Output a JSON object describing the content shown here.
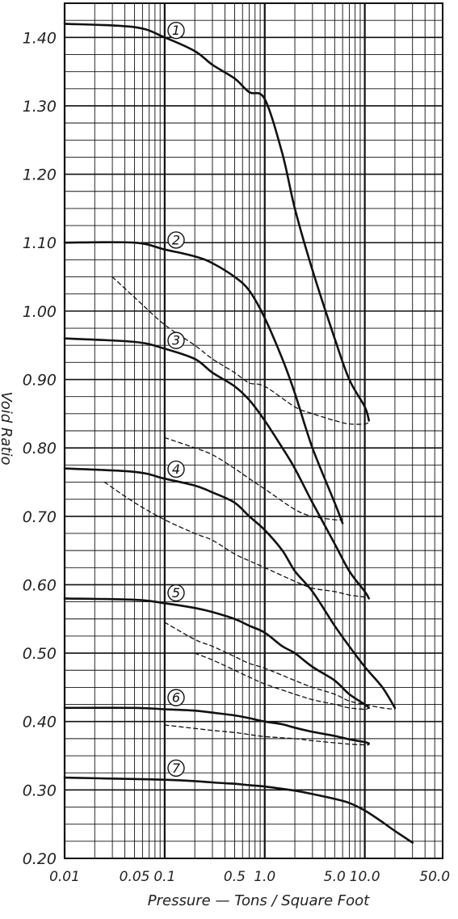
{
  "chart_data": {
    "type": "line",
    "xlabel": "Pressure — Tons / Square Foot",
    "ylabel": "Void Ratio",
    "x_scale": "log",
    "xlim": [
      0.01,
      60
    ],
    "ylim": [
      0.2,
      1.45
    ],
    "grid": true,
    "x_tick_labels": [
      "0.01",
      "0.05",
      "0.1",
      "0.5",
      "1.0",
      "5.0",
      "10.0",
      "50.0"
    ],
    "y_tick_labels": [
      "0.20",
      "0.30",
      "0.40",
      "0.50",
      "0.60",
      "0.70",
      "0.80",
      "0.90",
      "1.00",
      "1.10",
      "1.20",
      "1.30",
      "1.40"
    ],
    "series": [
      {
        "name": "1",
        "style": "solid",
        "x": [
          0.01,
          0.05,
          0.1,
          0.2,
          0.3,
          0.5,
          0.7,
          1.0,
          1.5,
          2.0,
          3.0,
          5.0,
          7.0,
          10.0,
          11.0
        ],
        "y": [
          1.42,
          1.415,
          1.4,
          1.38,
          1.36,
          1.34,
          1.32,
          1.31,
          1.23,
          1.15,
          1.06,
          0.96,
          0.9,
          0.86,
          0.84
        ]
      },
      {
        "name": "2",
        "style": "solid",
        "x": [
          0.01,
          0.05,
          0.1,
          0.2,
          0.3,
          0.5,
          0.7,
          1.0,
          1.5,
          2.0,
          3.0,
          5.0,
          6.0
        ],
        "y": [
          1.1,
          1.1,
          1.09,
          1.08,
          1.07,
          1.05,
          1.03,
          0.99,
          0.93,
          0.88,
          0.8,
          0.72,
          0.69
        ]
      },
      {
        "name": "3",
        "style": "solid",
        "x": [
          0.01,
          0.05,
          0.1,
          0.2,
          0.3,
          0.5,
          0.7,
          1.0,
          1.5,
          2.0,
          3.0,
          5.0,
          7.0,
          10.0,
          11.0
        ],
        "y": [
          0.96,
          0.955,
          0.945,
          0.93,
          0.91,
          0.89,
          0.87,
          0.84,
          0.8,
          0.77,
          0.72,
          0.66,
          0.62,
          0.59,
          0.58
        ]
      },
      {
        "name": "4",
        "style": "solid",
        "x": [
          0.01,
          0.05,
          0.1,
          0.2,
          0.3,
          0.5,
          0.7,
          1.0,
          1.5,
          2.0,
          3.0,
          5.0,
          7.0,
          10.0,
          15.0,
          20.0
        ],
        "y": [
          0.77,
          0.765,
          0.755,
          0.745,
          0.735,
          0.72,
          0.7,
          0.68,
          0.65,
          0.62,
          0.59,
          0.54,
          0.51,
          0.48,
          0.45,
          0.42
        ]
      },
      {
        "name": "5",
        "style": "solid",
        "x": [
          0.01,
          0.05,
          0.1,
          0.2,
          0.3,
          0.5,
          0.7,
          1.0,
          1.5,
          2.0,
          3.0,
          5.0,
          7.0,
          10.0,
          11.0
        ],
        "y": [
          0.58,
          0.578,
          0.573,
          0.566,
          0.56,
          0.55,
          0.54,
          0.53,
          0.51,
          0.5,
          0.48,
          0.46,
          0.44,
          0.425,
          0.42
        ]
      },
      {
        "name": "6",
        "style": "solid",
        "x": [
          0.01,
          0.05,
          0.1,
          0.2,
          0.3,
          0.5,
          0.7,
          1.0,
          1.5,
          2.0,
          3.0,
          5.0,
          7.0,
          10.0,
          11.0
        ],
        "y": [
          0.42,
          0.42,
          0.418,
          0.416,
          0.413,
          0.409,
          0.405,
          0.4,
          0.396,
          0.391,
          0.385,
          0.379,
          0.374,
          0.37,
          0.368
        ]
      },
      {
        "name": "7",
        "style": "solid",
        "x": [
          0.01,
          0.05,
          0.1,
          0.2,
          0.3,
          0.5,
          0.7,
          1.0,
          2.0,
          3.0,
          5.0,
          7.0,
          10.0,
          15.0,
          20.0,
          30.0
        ],
        "y": [
          0.318,
          0.316,
          0.315,
          0.313,
          0.311,
          0.309,
          0.307,
          0.305,
          0.299,
          0.294,
          0.287,
          0.281,
          0.27,
          0.253,
          0.24,
          0.223
        ]
      },
      {
        "name": "",
        "style": "dashed",
        "x": [
          0.03,
          0.05,
          0.1,
          0.2,
          0.3,
          0.5,
          0.7,
          1.0,
          2.0,
          3.0,
          5.0,
          7.0,
          10.0,
          11.0
        ],
        "y": [
          1.05,
          1.02,
          0.98,
          0.95,
          0.93,
          0.91,
          0.895,
          0.89,
          0.86,
          0.85,
          0.84,
          0.835,
          0.835,
          0.838
        ]
      },
      {
        "name": "",
        "style": "dashed",
        "x": [
          0.1,
          0.2,
          0.3,
          0.5,
          0.7,
          1.0,
          2.0,
          3.0,
          5.0,
          6.0
        ],
        "y": [
          0.815,
          0.8,
          0.79,
          0.77,
          0.755,
          0.74,
          0.71,
          0.7,
          0.695,
          0.695
        ]
      },
      {
        "name": "",
        "style": "dashed",
        "x": [
          0.025,
          0.05,
          0.1,
          0.2,
          0.3,
          0.5,
          0.7,
          1.0,
          2.0,
          3.0,
          5.0,
          7.0,
          10.0,
          11.0
        ],
        "y": [
          0.75,
          0.72,
          0.695,
          0.675,
          0.665,
          0.645,
          0.635,
          0.625,
          0.605,
          0.595,
          0.59,
          0.585,
          0.582,
          0.58
        ]
      },
      {
        "name": "",
        "style": "dashed",
        "x": [
          0.1,
          0.2,
          0.3,
          0.5,
          0.7,
          1.0,
          2.0,
          3.0,
          5.0,
          7.0,
          10.0,
          15.0,
          20.0
        ],
        "y": [
          0.545,
          0.52,
          0.51,
          0.495,
          0.485,
          0.478,
          0.46,
          0.45,
          0.44,
          0.43,
          0.425,
          0.42,
          0.418
        ]
      },
      {
        "name": "",
        "style": "dashed",
        "x": [
          0.2,
          0.3,
          0.5,
          0.7,
          1.0,
          2.0,
          3.0,
          5.0,
          7.0,
          10.0,
          11.0
        ],
        "y": [
          0.5,
          0.49,
          0.475,
          0.465,
          0.455,
          0.44,
          0.432,
          0.425,
          0.42,
          0.418,
          0.42
        ]
      },
      {
        "name": "",
        "style": "dashed",
        "x": [
          0.1,
          0.2,
          0.3,
          0.5,
          0.7,
          1.0,
          2.0,
          3.0,
          5.0,
          7.0,
          10.0,
          11.0
        ],
        "y": [
          0.395,
          0.39,
          0.387,
          0.384,
          0.381,
          0.378,
          0.375,
          0.372,
          0.369,
          0.367,
          0.366,
          0.366
        ]
      }
    ]
  }
}
